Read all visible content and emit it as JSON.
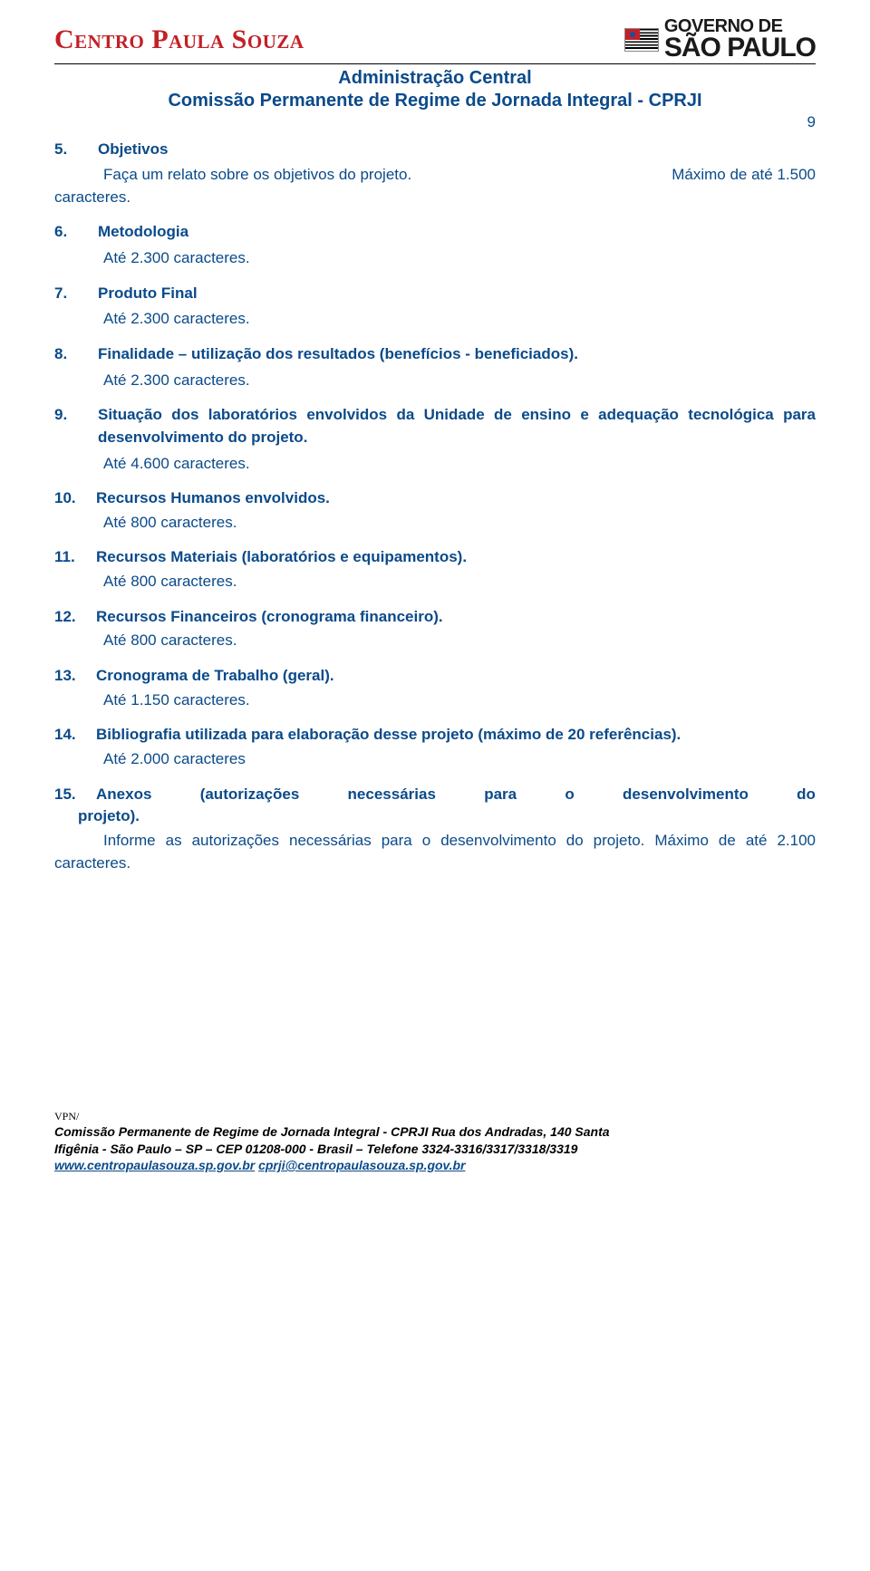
{
  "logos": {
    "left_text": "Centro Paula Souza",
    "right_line1": "GOVERNO DE",
    "right_line2": "SÃO PAULO"
  },
  "header": {
    "title1": "Administração Central",
    "title2": "Comissão Permanente de Regime de Jornada Integral - CPRJI",
    "page_number": "9"
  },
  "sections": [
    {
      "num": "5.",
      "title": "Objetivos",
      "body_left": "Faça um relato sobre os objetivos do projeto.",
      "body_right": "Máximo de até 1.500",
      "body_cont": "caracteres."
    },
    {
      "num": "6.",
      "title": "Metodologia",
      "limit": "Até 2.300 caracteres."
    },
    {
      "num": "7.",
      "title": "Produto Final",
      "limit": "Até 2.300 caracteres."
    },
    {
      "num": "8.",
      "title": "Finalidade – utilização dos resultados (benefícios - beneficiados).",
      "limit": "Até 2.300 caracteres."
    },
    {
      "num": "9.",
      "title": "Situação dos laboratórios envolvidos da Unidade de ensino e adequação tecnológica para desenvolvimento do projeto.",
      "limit": "Até 4.600 caracteres."
    },
    {
      "num": "10.",
      "title": "Recursos Humanos envolvidos.",
      "limit": "Até 800 caracteres."
    },
    {
      "num": "11.",
      "title": "Recursos Materiais (laboratórios e equipamentos).",
      "limit": "Até 800 caracteres."
    },
    {
      "num": "12.",
      "title": "Recursos Financeiros (cronograma financeiro).",
      "limit": "Até 800 caracteres."
    },
    {
      "num": "13.",
      "title": "Cronograma de Trabalho (geral).",
      "limit": "Até 1.150 caracteres."
    },
    {
      "num": "14.",
      "title": "Bibliografia utilizada para elaboração desse projeto (máximo de 20 referências).",
      "limit": "Até 2.000 caracteres"
    }
  ],
  "section15": {
    "num": "15.",
    "title_part1": "Anexos",
    "title_part2": "(autorizações",
    "title_part3": "necessárias",
    "title_part4": "para",
    "title_part5": "o",
    "title_part6": "desenvolvimento",
    "title_part7": "do",
    "title_cont": "projeto).",
    "body": "Informe as autorizações necessárias para o desenvolvimento do projeto. Máximo de até 2.100 caracteres."
  },
  "footer": {
    "vpn": "VPN/",
    "line1": "Comissão Permanente de Regime de Jornada Integral - CPRJI Rua dos Andradas, 140 Santa",
    "line2": "Ifigênia - São Paulo – SP – CEP 01208-000 - Brasil – Telefone 3324-3316/3317/3318/3319",
    "url": "www.centropaulasouza.sp.gov.br",
    "email": "cprji@centropaulasouza.sp.gov.br"
  },
  "colors": {
    "brand_blue": "#0a4a8a",
    "brand_red": "#c32027",
    "text_black": "#000000"
  }
}
